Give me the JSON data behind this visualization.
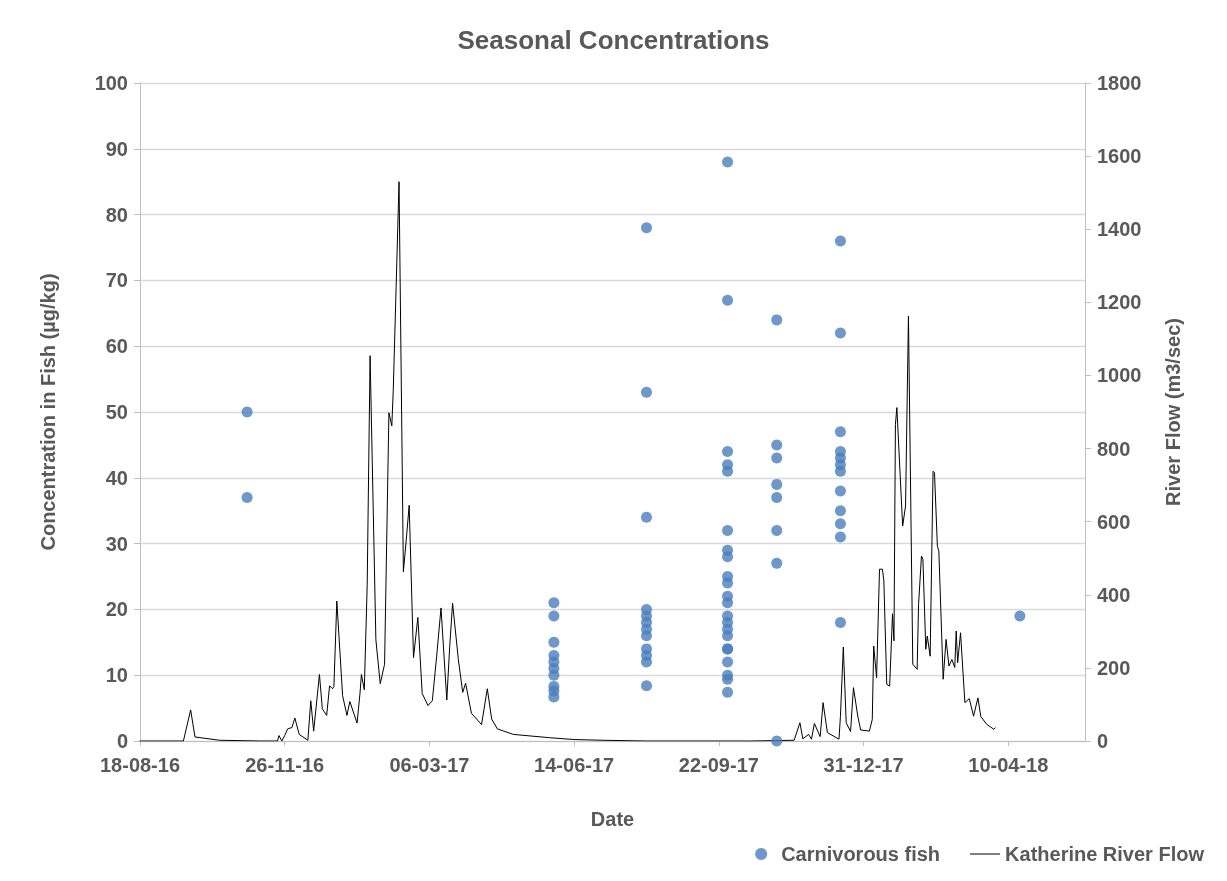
{
  "chart_data": {
    "type": "scatter",
    "title": "Seasonal Concentrations",
    "xlabel": "Date",
    "ylabel": "Concentration in Fish (µg/kg)",
    "y2label": "River Flow (m3/sec)",
    "xlim": [
      "2016-08-18",
      "2018-06-02"
    ],
    "xticks": [
      {
        "value": "2016-08-18",
        "label": "18-08-16"
      },
      {
        "value": "2016-11-26",
        "label": "26-11-16"
      },
      {
        "value": "2017-03-06",
        "label": "06-03-17"
      },
      {
        "value": "2017-06-14",
        "label": "14-06-17"
      },
      {
        "value": "2017-09-22",
        "label": "22-09-17"
      },
      {
        "value": "2017-12-31",
        "label": "31-12-17"
      },
      {
        "value": "2018-04-10",
        "label": "10-04-18"
      }
    ],
    "ylim": [
      0,
      100
    ],
    "yticks": [
      0,
      10,
      20,
      30,
      40,
      50,
      60,
      70,
      80,
      90,
      100
    ],
    "y2lim": [
      0,
      1800
    ],
    "y2ticks": [
      0,
      200,
      400,
      600,
      800,
      1000,
      1200,
      1400,
      1600,
      1800
    ],
    "grid": "y",
    "legend": "bottom right",
    "series": [
      {
        "name": "Carnivorous fish",
        "marker": "circle",
        "color": "#4a7ebb",
        "x": [
          "2016-10-31",
          "2016-10-31",
          "2017-05-31",
          "2017-05-31",
          "2017-05-31",
          "2017-05-31",
          "2017-05-31",
          "2017-05-31",
          "2017-05-31",
          "2017-05-31",
          "2017-05-31",
          "2017-05-31",
          "2017-08-03",
          "2017-08-03",
          "2017-08-03",
          "2017-08-03",
          "2017-08-03",
          "2017-08-03",
          "2017-08-03",
          "2017-08-03",
          "2017-08-03",
          "2017-08-03",
          "2017-08-03",
          "2017-08-03",
          "2017-09-28",
          "2017-09-28",
          "2017-09-28",
          "2017-09-28",
          "2017-09-28",
          "2017-09-28",
          "2017-09-28",
          "2017-09-28",
          "2017-09-28",
          "2017-09-28",
          "2017-09-28",
          "2017-09-28",
          "2017-09-28",
          "2017-09-28",
          "2017-09-28",
          "2017-09-28",
          "2017-09-28",
          "2017-09-28",
          "2017-09-28",
          "2017-09-28",
          "2017-09-28",
          "2017-09-28",
          "2017-11-01",
          "2017-11-01",
          "2017-11-01",
          "2017-11-01",
          "2017-11-01",
          "2017-11-01",
          "2017-11-01",
          "2017-11-01",
          "2017-12-15",
          "2017-12-15",
          "2017-12-15",
          "2017-12-15",
          "2017-12-15",
          "2017-12-15",
          "2017-12-15",
          "2017-12-15",
          "2017-12-15",
          "2017-12-15",
          "2017-12-15",
          "2017-12-15",
          "2018-04-18"
        ],
        "values": [
          50,
          37,
          21,
          19,
          15,
          13,
          12,
          11,
          10,
          8.3,
          7.6,
          6.7,
          78,
          53,
          34,
          20,
          19,
          18,
          17,
          16,
          14,
          13,
          12,
          8.4,
          88,
          67,
          44,
          42,
          41,
          32,
          29,
          28,
          25,
          24,
          22,
          21,
          19,
          18,
          17,
          16,
          14,
          14,
          12,
          10,
          9.4,
          7.4,
          64,
          45,
          43,
          39,
          37,
          32,
          27,
          0,
          76,
          62,
          47,
          44,
          43,
          42,
          41,
          38,
          35,
          33,
          31,
          18,
          19
        ]
      },
      {
        "name": "Katherine River Flow",
        "type": "line",
        "marker": "none",
        "line_style": "solid",
        "axis": "y2",
        "color": "#000000",
        "x": [
          "2016-08-18",
          "2016-09-17",
          "2016-09-22",
          "2016-09-25",
          "2016-10-12",
          "2016-11-09",
          "2016-11-21",
          "2016-11-22",
          "2016-11-24",
          "2016-11-26",
          "2016-11-28",
          "2016-12-01",
          "2016-12-03",
          "2016-12-06",
          "2016-12-12",
          "2016-12-14",
          "2016-12-16",
          "2016-12-20",
          "2016-12-22",
          "2016-12-25",
          "2016-12-27",
          "2016-12-29",
          "2016-12-30",
          "2017-01-01",
          "2017-01-05",
          "2017-01-08",
          "2017-01-10",
          "2017-01-15",
          "2017-01-17",
          "2017-01-18",
          "2017-01-20",
          "2017-01-22",
          "2017-01-24",
          "2017-01-28",
          "2017-01-31",
          "2017-02-03",
          "2017-02-06",
          "2017-02-08",
          "2017-02-09",
          "2017-02-13",
          "2017-02-16",
          "2017-02-18",
          "2017-02-20",
          "2017-02-23",
          "2017-02-26",
          "2017-03-01",
          "2017-03-05",
          "2017-03-08",
          "2017-03-11",
          "2017-03-14",
          "2017-03-17",
          "2017-03-18",
          "2017-03-20",
          "2017-03-22",
          "2017-03-26",
          "2017-03-29",
          "2017-03-31",
          "2017-04-04",
          "2017-04-11",
          "2017-04-15",
          "2017-04-18",
          "2017-04-22",
          "2017-05-03",
          "2017-05-28",
          "2017-06-14",
          "2017-07-04",
          "2017-08-03",
          "2017-10-14",
          "2017-11-13",
          "2017-11-17",
          "2017-11-19",
          "2017-11-23",
          "2017-11-25",
          "2017-11-27",
          "2017-12-01",
          "2017-12-03",
          "2017-12-06",
          "2017-12-14",
          "2017-12-15",
          "2017-12-17",
          "2017-12-19",
          "2017-12-22",
          "2017-12-24",
          "2017-12-27",
          "2017-12-29",
          "2018-01-04",
          "2018-01-06",
          "2018-01-07",
          "2018-01-09",
          "2018-01-11",
          "2018-01-13",
          "2018-01-14",
          "2018-01-16",
          "2018-01-18",
          "2018-01-20",
          "2018-01-21",
          "2018-01-22",
          "2018-01-23",
          "2018-01-27",
          "2018-01-29",
          "2018-01-31",
          "2018-02-03",
          "2018-02-06",
          "2018-02-07",
          "2018-02-09",
          "2018-02-10",
          "2018-02-12",
          "2018-02-13",
          "2018-02-15",
          "2018-02-17",
          "2018-02-18",
          "2018-02-20",
          "2018-02-21",
          "2018-02-24",
          "2018-02-26",
          "2018-02-28",
          "2018-03-02",
          "2018-03-04",
          "2018-03-05",
          "2018-03-06",
          "2018-03-08",
          "2018-03-11",
          "2018-03-14",
          "2018-03-17",
          "2018-03-20",
          "2018-03-22",
          "2018-03-26",
          "2018-03-31",
          "2018-04-01"
        ],
        "values": [
          0,
          0,
          85,
          11,
          2,
          0,
          0,
          15,
          0,
          15,
          33,
          37,
          63,
          18,
          2,
          110,
          27,
          182,
          88,
          70,
          151,
          143,
          149,
          383,
          124,
          70,
          108,
          49,
          130,
          182,
          140,
          429,
          1054,
          277,
          157,
          210,
          898,
          862,
          959,
          1530,
          463,
          551,
          645,
          228,
          338,
          130,
          97,
          110,
          232,
          364,
          175,
          112,
          258,
          377,
          222,
          133,
          158,
          76,
          45,
          143,
          60,
          33,
          18,
          9,
          4,
          2,
          0,
          0,
          2,
          50,
          6,
          18,
          5,
          48,
          12,
          105,
          23,
          5,
          67,
          257,
          50,
          26,
          146,
          68,
          30,
          27,
          59,
          260,
          173,
          470,
          470,
          438,
          155,
          150,
          348,
          274,
          866,
          912,
          588,
          643,
          1162,
          210,
          196,
          374,
          506,
          497,
          251,
          287,
          232,
          738,
          734,
          533,
          520,
          169,
          278,
          205,
          223,
          201,
          301,
          214,
          296,
          105,
          116,
          68,
          118,
          67,
          46,
          32,
          36
        ]
      }
    ]
  }
}
